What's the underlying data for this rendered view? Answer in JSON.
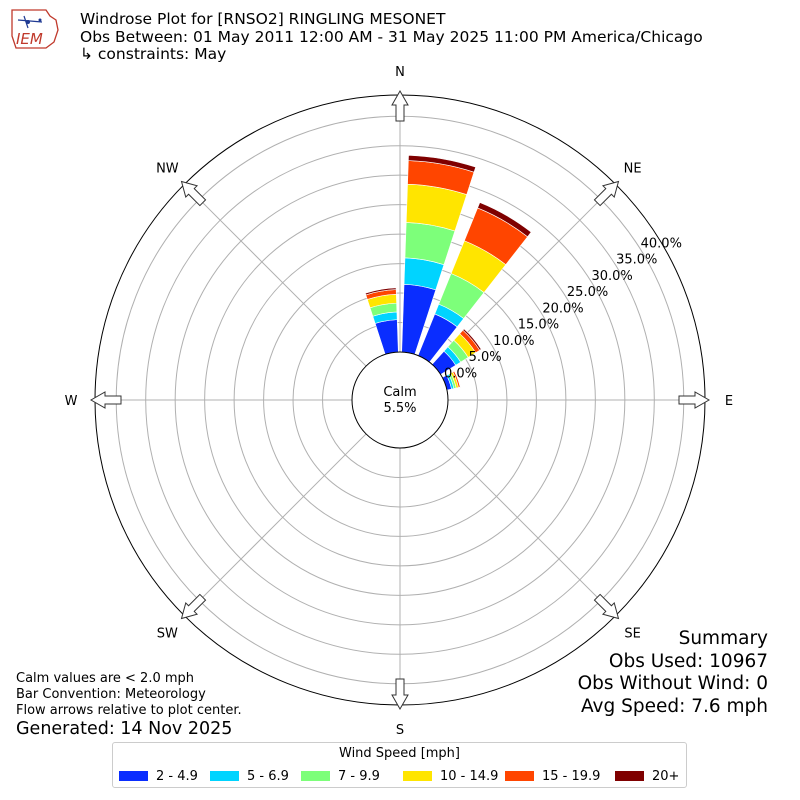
{
  "header": {
    "logo_text": "IEM",
    "title_line1": "Windrose Plot for [RNSO2] RINGLING MESONET",
    "title_line2": "Obs Between: 01 May 2011 12:00 AM - 31 May 2025 11:00 PM America/Chicago",
    "title_line3": "↳ constraints: May"
  },
  "footer": {
    "note1": "Calm values are < 2.0 mph",
    "note2": "Bar Convention: Meteorology",
    "note3": "Flow arrows relative to plot center.",
    "generated": "Generated: 14 Nov 2025"
  },
  "summary": {
    "title": "Summary",
    "obs_used": "Obs Used: 10967",
    "obs_without_wind": "Obs Without Wind: 0",
    "avg_speed": "Avg Speed: 7.6 mph"
  },
  "chart_data": {
    "type": "windrose",
    "calm_label": "Calm",
    "calm_value": "5.5%",
    "directions": [
      "N",
      "NE",
      "E",
      "SE",
      "S",
      "SW",
      "W",
      "NW"
    ],
    "radial_ticks": [
      "0.0%",
      "5.0%",
      "10.0%",
      "15.0%",
      "20.0%",
      "25.0%",
      "30.0%",
      "35.0%",
      "40.0%"
    ],
    "radial_range": [
      0,
      40
    ],
    "grid": true,
    "legend_title": "Wind Speed [mph]",
    "legend_position": "bottom-center",
    "speed_bins": [
      {
        "name": "2 - 4.9",
        "color": "#0a2dff"
      },
      {
        "name": "5 - 6.9",
        "color": "#00d4ff"
      },
      {
        "name": "7 - 9.9",
        "color": "#7dff7a"
      },
      {
        "name": "10 - 14.9",
        "color": "#ffe500"
      },
      {
        "name": "15 - 19.9",
        "color": "#ff4500"
      },
      {
        "name": "20+",
        "color": "#7f0000"
      }
    ],
    "bars": [
      {
        "direction_deg": 350,
        "cumulative": [
          5.5,
          6.8,
          8.3,
          9.8,
          10.6,
          10.9
        ]
      },
      {
        "direction_deg": 10,
        "cumulative": [
          11.5,
          16.0,
          22.0,
          28.5,
          32.5,
          33.4
        ]
      },
      {
        "direction_deg": 30,
        "cumulative": [
          7.6,
          9.4,
          15.0,
          21.0,
          27.0,
          28.0
        ]
      },
      {
        "direction_deg": 50,
        "cumulative": [
          3.0,
          4.0,
          5.5,
          7.0,
          7.8,
          8.1
        ]
      },
      {
        "direction_deg": 70,
        "cumulative": [
          0.8,
          1.2,
          1.6,
          2.0,
          2.3,
          2.4
        ]
      }
    ]
  }
}
